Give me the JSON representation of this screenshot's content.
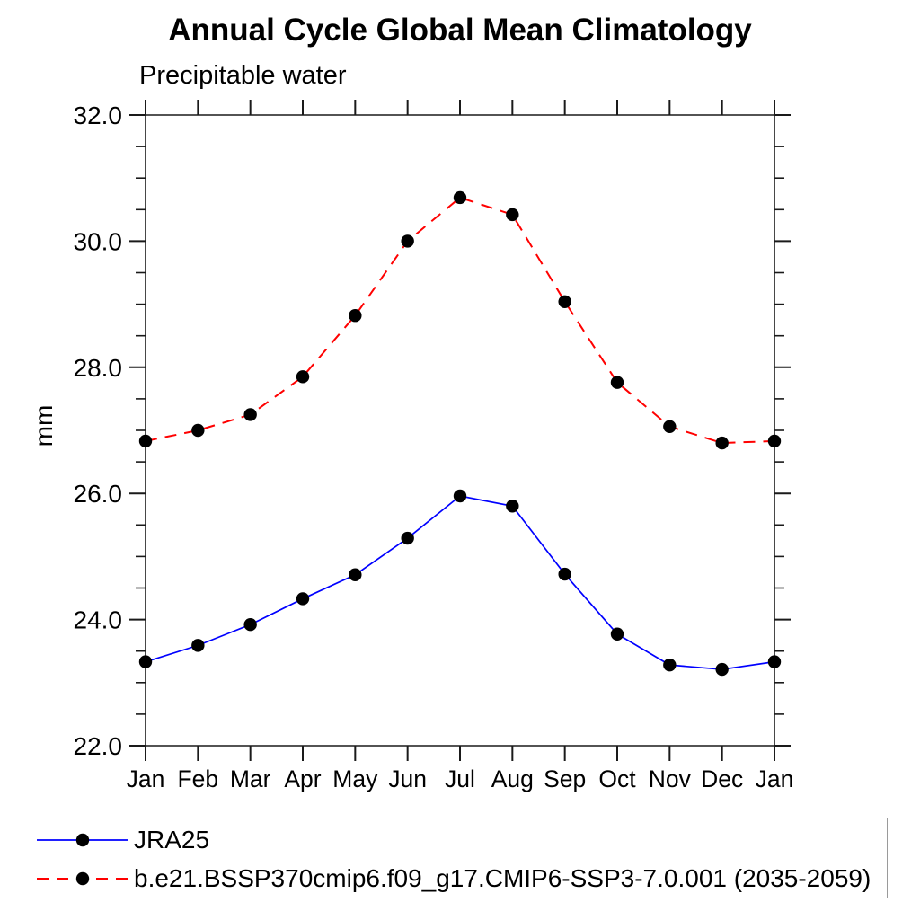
{
  "header": {
    "title": "Annual Cycle Global Mean Climatology",
    "subtitle": "Precipitable water"
  },
  "chart_data": {
    "type": "line",
    "title": "Annual Cycle Global Mean Climatology",
    "subtitle": "Precipitable water",
    "xlabel": "",
    "ylabel": "mm",
    "categories": [
      "Jan",
      "Feb",
      "Mar",
      "Apr",
      "May",
      "Jun",
      "Jul",
      "Aug",
      "Sep",
      "Oct",
      "Nov",
      "Dec",
      "Jan"
    ],
    "ylim": [
      22.0,
      32.0
    ],
    "ytick_major_interval": 2.0,
    "ytick_minor_interval": 0.5,
    "ytick_labels": [
      "22.0",
      "24.0",
      "26.0",
      "28.0",
      "30.0",
      "32.0"
    ],
    "grid": false,
    "legend_position": "bottom",
    "marker": "filled-circle",
    "marker_color": "#000000",
    "series": [
      {
        "name": "JRA25",
        "color": "#0000ff",
        "line_style": "solid",
        "values": [
          23.33,
          23.59,
          23.92,
          24.33,
          24.71,
          25.29,
          25.96,
          25.8,
          24.72,
          23.77,
          23.28,
          23.21,
          23.33
        ]
      },
      {
        "name": "b.e21.BSSP370cmip6.f09_g17.CMIP6-SSP3-7.0.001 (2035-2059)",
        "color": "#ff0000",
        "line_style": "dashed",
        "values": [
          26.83,
          27.0,
          27.25,
          27.85,
          28.82,
          30.0,
          30.69,
          30.42,
          29.04,
          27.76,
          27.06,
          26.8,
          26.83
        ]
      }
    ]
  }
}
